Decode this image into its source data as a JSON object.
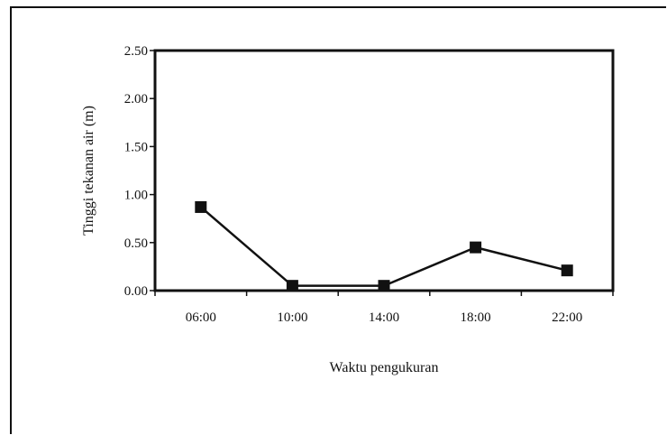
{
  "chart_data": {
    "type": "line",
    "title": "",
    "xlabel": "Waktu pengukuran",
    "ylabel": "Tinggi tekanan air (m)",
    "categories": [
      "06:00",
      "10:00",
      "14:00",
      "18:00",
      "22:00"
    ],
    "series": [
      {
        "values": [
          0.87,
          0.05,
          0.05,
          0.45,
          0.21
        ]
      }
    ],
    "ylim": [
      0,
      2.5
    ],
    "yticks": [
      "0.00",
      "0.50",
      "1.00",
      "1.50",
      "2.00",
      "2.50"
    ],
    "grid": false,
    "legend": "none"
  }
}
